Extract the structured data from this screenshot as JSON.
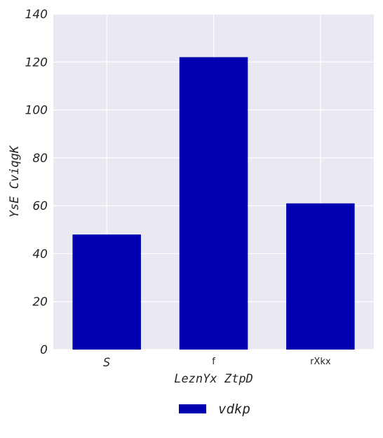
{
  "chart_data": {
    "type": "bar",
    "categories": [
      "S",
      "f",
      "rXkx"
    ],
    "series": [
      {
        "name": "vdkp",
        "values": [
          48,
          122,
          61
        ],
        "color": "#0000b0"
      }
    ],
    "xlabel": "LeznYx ZtpD",
    "ylabel": "YsE CviqgK",
    "ylim": [
      0,
      140
    ],
    "yticks": [
      0,
      20,
      40,
      60,
      80,
      100,
      120,
      140
    ],
    "grid": true,
    "background": "#e9e9f1",
    "legend_position": "bottom-center"
  }
}
